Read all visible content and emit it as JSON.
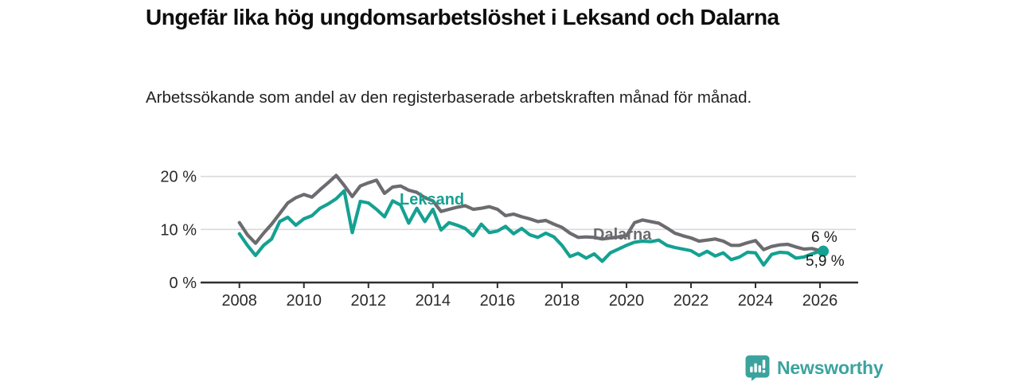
{
  "header": {
    "title": "Ungefär lika hög ungdomsarbetslöshet i Leksand och Dalarna",
    "subtitle": "Arbetssökande som andel av den registerbaserade arbetskraften månad för månad."
  },
  "chart_data": {
    "type": "line",
    "title": "Ungefär lika hög ungdomsarbetslöshet i Leksand och Dalarna",
    "xlabel": "",
    "ylabel": "",
    "y_unit": "%",
    "grid": "horizontal",
    "legend_position": "inline-labels",
    "xlim": [
      2007.8,
      2027.1
    ],
    "ylim": [
      0,
      22.5
    ],
    "x_ticks": [
      2008,
      2010,
      2012,
      2014,
      2016,
      2018,
      2020,
      2022,
      2024,
      2026
    ],
    "y_ticks": [
      {
        "value": 0,
        "label": "0 %"
      },
      {
        "value": 10,
        "label": "10 %"
      },
      {
        "value": 20,
        "label": "20 %"
      }
    ],
    "x": [
      2008.0,
      2008.25,
      2008.5,
      2008.75,
      2009.0,
      2009.25,
      2009.5,
      2009.75,
      2010.0,
      2010.25,
      2010.5,
      2010.75,
      2011.0,
      2011.25,
      2011.5,
      2011.75,
      2012.0,
      2012.25,
      2012.5,
      2012.75,
      2013.0,
      2013.25,
      2013.5,
      2013.75,
      2014.0,
      2014.25,
      2014.5,
      2014.75,
      2015.0,
      2015.25,
      2015.5,
      2015.75,
      2016.0,
      2016.25,
      2016.5,
      2016.75,
      2017.0,
      2017.25,
      2017.5,
      2017.75,
      2018.0,
      2018.25,
      2018.5,
      2018.75,
      2019.0,
      2019.25,
      2019.5,
      2019.75,
      2020.0,
      2020.25,
      2020.5,
      2020.75,
      2021.0,
      2021.25,
      2021.5,
      2021.75,
      2022.0,
      2022.25,
      2022.5,
      2022.75,
      2023.0,
      2023.25,
      2023.5,
      2023.75,
      2024.0,
      2024.25,
      2024.5,
      2024.75,
      2025.0,
      2025.25,
      2025.5,
      2025.75,
      2026.0
    ],
    "series": [
      {
        "name": "Dalarna",
        "color": "#6c6c70",
        "end_value_label": "6 %",
        "values": [
          11.3,
          9.0,
          7.4,
          9.3,
          11.0,
          13.0,
          15.0,
          16.0,
          16.6,
          16.1,
          17.5,
          18.8,
          20.2,
          18.3,
          16.2,
          18.2,
          18.8,
          19.3,
          16.8,
          18.0,
          18.2,
          17.4,
          17.0,
          16.0,
          15.4,
          13.4,
          13.8,
          14.2,
          14.5,
          13.8,
          14.0,
          14.3,
          13.8,
          12.6,
          12.9,
          12.4,
          12.0,
          11.5,
          11.7,
          11.0,
          10.4,
          9.3,
          8.5,
          8.6,
          8.5,
          8.2,
          8.4,
          8.6,
          8.8,
          11.3,
          11.8,
          11.5,
          11.2,
          10.3,
          9.3,
          8.8,
          8.4,
          7.8,
          8.0,
          8.2,
          7.8,
          7.0,
          7.0,
          7.5,
          7.9,
          6.2,
          6.8,
          7.1,
          7.2,
          6.7,
          6.3,
          6.4,
          6.0
        ]
      },
      {
        "name": "Leksand",
        "color": "#14a192",
        "end_value_label": "5,9 %",
        "values": [
          9.2,
          7.0,
          5.1,
          7.0,
          8.2,
          11.5,
          12.3,
          10.8,
          12.0,
          12.6,
          14.0,
          14.8,
          15.8,
          17.3,
          9.4,
          15.3,
          15.0,
          13.8,
          12.4,
          15.4,
          14.6,
          11.2,
          14.0,
          11.5,
          13.8,
          9.9,
          11.3,
          10.8,
          10.2,
          8.8,
          11.0,
          9.4,
          9.7,
          10.6,
          9.2,
          10.2,
          9.0,
          8.5,
          9.3,
          8.6,
          7.0,
          4.9,
          5.5,
          4.6,
          5.4,
          4.0,
          5.6,
          6.3,
          7.0,
          7.6,
          7.8,
          7.7,
          8.0,
          7.0,
          6.6,
          6.3,
          6.0,
          5.1,
          5.9,
          5.0,
          5.6,
          4.3,
          4.8,
          5.7,
          5.6,
          3.3,
          5.3,
          5.7,
          5.6,
          4.6,
          4.8,
          5.4,
          5.9
        ]
      }
    ]
  },
  "annotations": {
    "dalarna_end": "6 %",
    "leksand_end": "5,9 %"
  },
  "footer": {
    "brand": "Newsworthy"
  },
  "colors": {
    "leksand_line": "#14a192",
    "dalarna_line": "#6c6c70",
    "gridline": "#dadada",
    "axis": "#2e2e2e",
    "brand_teal": "#3ba39e"
  }
}
